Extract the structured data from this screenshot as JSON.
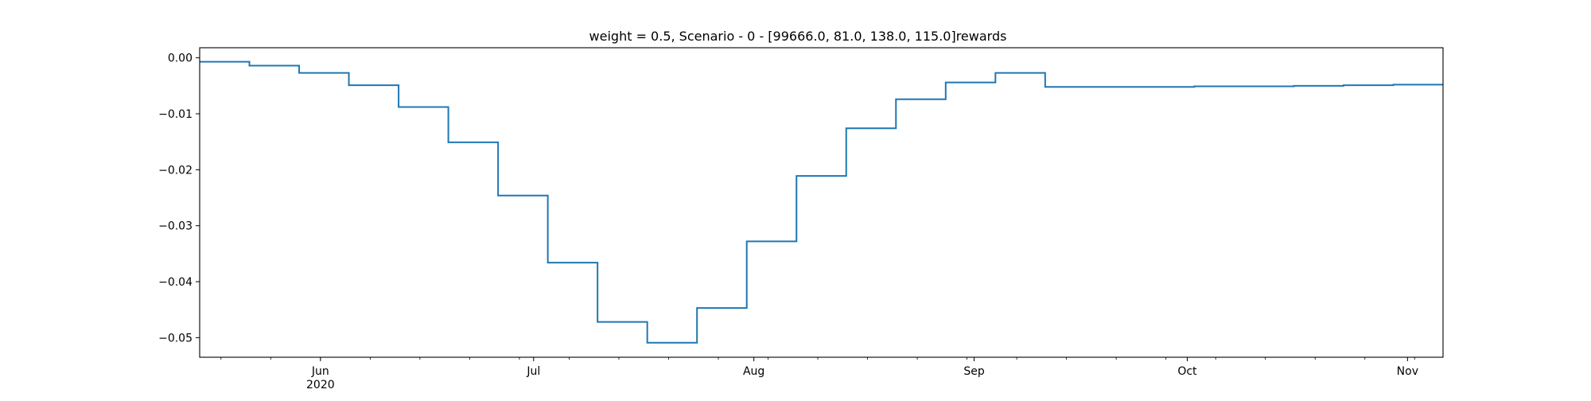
{
  "chart_data": {
    "type": "line",
    "step": "post",
    "title": "weight = 0.5, Scenario - 0 - [99666.0, 81.0, 138.0, 115.0]rewards",
    "xlabel": "",
    "ylabel": "",
    "x_axis": {
      "type": "date",
      "range": [
        "2020-05-15",
        "2020-11-06"
      ],
      "tick_labels": [
        {
          "date": "2020-06-01",
          "label": "Jun",
          "sublabel": "2020"
        },
        {
          "date": "2020-07-01",
          "label": "Jul",
          "sublabel": ""
        },
        {
          "date": "2020-08-01",
          "label": "Aug",
          "sublabel": ""
        },
        {
          "date": "2020-09-01",
          "label": "Sep",
          "sublabel": ""
        },
        {
          "date": "2020-10-01",
          "label": "Oct",
          "sublabel": ""
        },
        {
          "date": "2020-11-01",
          "label": "Nov",
          "sublabel": ""
        }
      ]
    },
    "y_axis": {
      "range": [
        -0.0535,
        0.0018
      ],
      "ticks": [
        0.0,
        -0.01,
        -0.02,
        -0.03,
        -0.04,
        -0.05
      ],
      "tick_labels": [
        "0.00",
        "−0.01",
        "−0.02",
        "−0.03",
        "−0.04",
        "−0.05"
      ]
    },
    "grid": false,
    "legend": false,
    "series": [
      {
        "color": "#1f77b4",
        "x": [
          "2020-05-15",
          "2020-05-22",
          "2020-05-29",
          "2020-06-05",
          "2020-06-12",
          "2020-06-19",
          "2020-06-26",
          "2020-07-03",
          "2020-07-10",
          "2020-07-17",
          "2020-07-24",
          "2020-07-31",
          "2020-08-07",
          "2020-08-14",
          "2020-08-21",
          "2020-08-28",
          "2020-09-04",
          "2020-09-11",
          "2020-09-18",
          "2020-09-25",
          "2020-10-02",
          "2020-10-09",
          "2020-10-16",
          "2020-10-23",
          "2020-10-30",
          "2020-11-06"
        ],
        "y": [
          -0.0007,
          -0.0014,
          -0.0027,
          -0.0049,
          -0.0088,
          -0.0151,
          -0.0246,
          -0.0366,
          -0.0472,
          -0.0509,
          -0.0447,
          -0.0328,
          -0.0211,
          -0.0126,
          -0.0074,
          -0.0044,
          -0.0027,
          -0.0052,
          -0.0052,
          -0.0052,
          -0.0051,
          -0.0051,
          -0.005,
          -0.0049,
          -0.0048,
          -0.0048
        ]
      }
    ]
  }
}
